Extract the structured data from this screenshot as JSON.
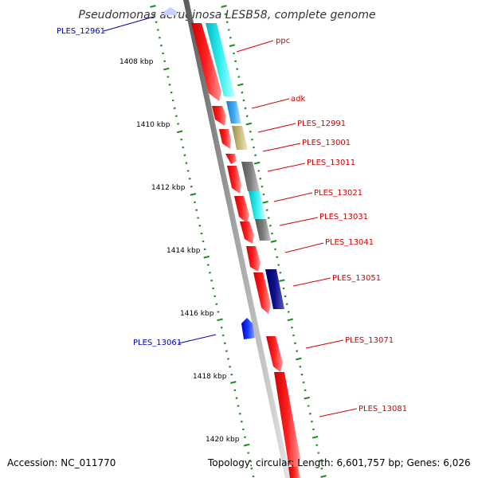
{
  "title": "Pseudomonas aeruginosa LESB58, complete genome",
  "footer": {
    "accession": "Accession: NC_011770",
    "topology": "Topology: circular; Length: 6,601,757 bp; Genes: 6,026"
  },
  "kbp_labels": [
    "1408 kbp",
    "1410 kbp",
    "1412 kbp",
    "1414 kbp",
    "1416 kbp",
    "1418 kbp",
    "1420 kbp"
  ],
  "gene_labels": {
    "reverse": [
      "PLES_12961",
      "PLES_13061"
    ],
    "forward": [
      "ppc",
      "adk",
      "PLES_12991",
      "PLES_13001",
      "PLES_13011",
      "PLES_13021",
      "PLES_13031",
      "PLES_13041",
      "PLES_13051",
      "PLES_13071",
      "PLES_13081"
    ]
  },
  "colors": {
    "forward_label": "#d40000",
    "reverse_label": "#0000b0",
    "cds": "#ff0000",
    "backbone": "#888888",
    "tick": "#1a8a1a"
  }
}
